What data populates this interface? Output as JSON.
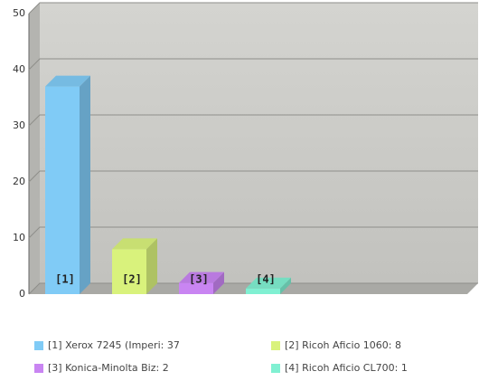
{
  "chart_data": {
    "type": "bar3d",
    "categories": [
      "[1]",
      "[2]",
      "[3]",
      "[4]"
    ],
    "values": [
      37,
      8,
      2,
      1
    ],
    "colors": [
      "#80cbf6",
      "#d9f27c",
      "#c985f2",
      "#80f0d2"
    ],
    "legend": [
      "[1] Xerox 7245 (Imperi: 37",
      "[2] Ricoh Aficio 1060: 8",
      "[3] Konica-Minolta Biz: 2",
      "[4] Ricoh Aficio CL700: 1"
    ],
    "ylim": [
      0,
      50
    ],
    "yticks": [
      0,
      10,
      20,
      30,
      40,
      50
    ],
    "grid": true
  }
}
